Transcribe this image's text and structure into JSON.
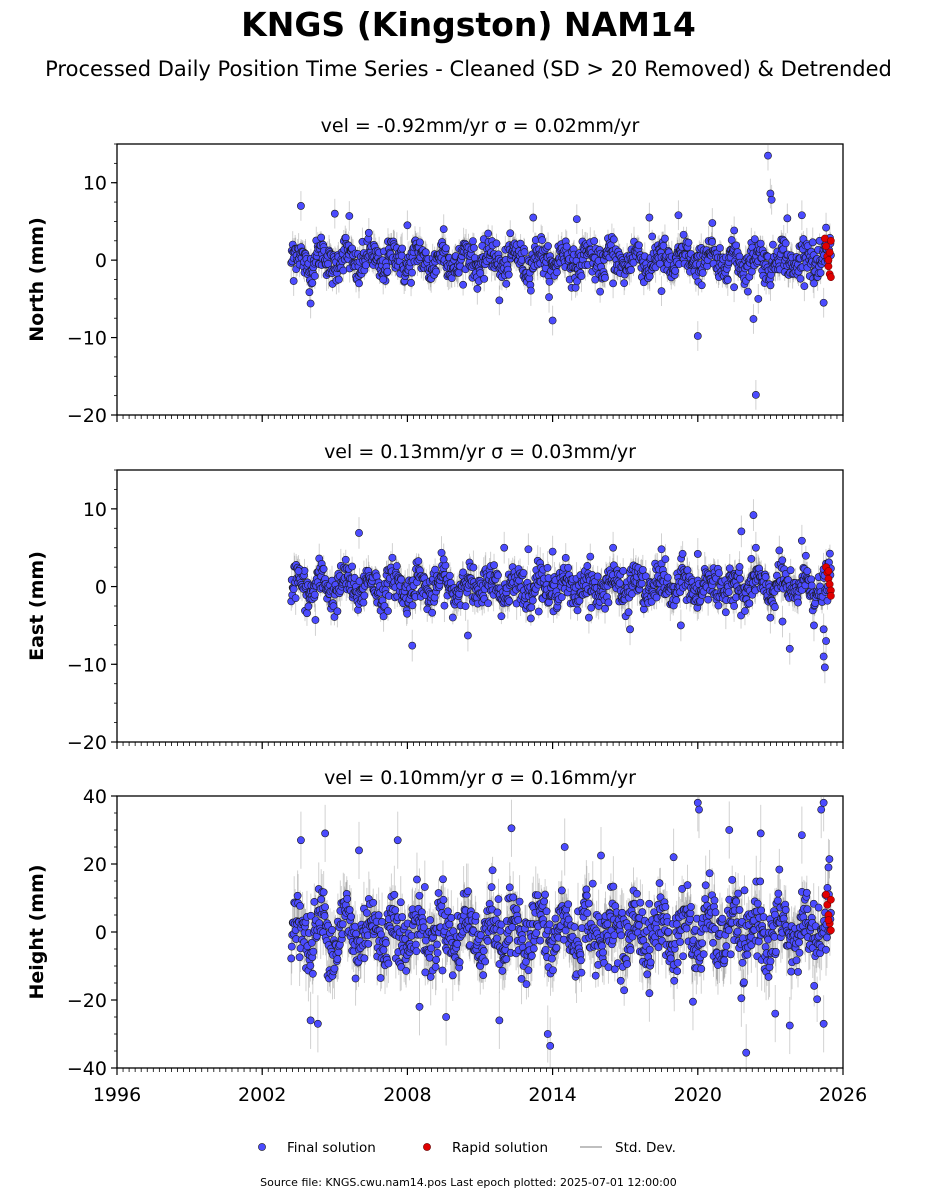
{
  "title": "KNGS (Kingston) NAM14",
  "subtitle": "Processed Daily Position Time Series - Cleaned (SD > 20 Removed) & Detrended",
  "footer": "Source file: KNGS.cwu.nam14.pos  Last epoch plotted: 2025-07-01 12:00:00",
  "legend": {
    "location": "bottom-center",
    "entries": [
      {
        "label": "Final solution",
        "color": "#4b4bff"
      },
      {
        "label": "Rapid solution",
        "color": "#e00000"
      },
      {
        "label": "Std. Dev.",
        "color": "#bfbfbf"
      }
    ]
  },
  "chart_data": [
    {
      "type": "scatter",
      "title": "vel = -0.92mm/yr   σ = 0.02mm/yr",
      "ylabel": "North (mm)",
      "xlabel": "",
      "xlim": [
        1996,
        2026
      ],
      "ylim": [
        -20,
        15
      ],
      "yticks": [
        -20,
        -10,
        0,
        10
      ],
      "xticks": [
        "1996",
        "2002",
        "2008",
        "2014",
        "2020",
        "2026"
      ],
      "data_start": 2003.2,
      "data_end": 2025.5,
      "final_spread_mm": 1.6,
      "series": [
        {
          "name": "Final solution",
          "points": [
            [
              2003.3,
              -2.7
            ],
            [
              2003.6,
              7.0
            ],
            [
              2004.0,
              -5.6
            ],
            [
              2005.0,
              6.0
            ],
            [
              2005.6,
              5.7
            ],
            [
              2006.0,
              -3.0
            ],
            [
              2007.0,
              -2.5
            ],
            [
              2008.0,
              4.5
            ],
            [
              2009.5,
              4.0
            ],
            [
              2011.8,
              -5.2
            ],
            [
              2013.2,
              5.5
            ],
            [
              2014.0,
              -7.8
            ],
            [
              2015.0,
              5.3
            ],
            [
              2016.5,
              -3.0
            ],
            [
              2018.0,
              5.5
            ],
            [
              2018.5,
              -4.0
            ],
            [
              2019.2,
              5.8
            ],
            [
              2020.0,
              -9.8
            ],
            [
              2020.6,
              4.8
            ],
            [
              2021.5,
              -3.5
            ],
            [
              2022.3,
              -7.6
            ],
            [
              2022.4,
              -17.4
            ],
            [
              2022.5,
              -5.0
            ],
            [
              2022.9,
              13.5
            ],
            [
              2023.0,
              8.6
            ],
            [
              2023.05,
              7.8
            ],
            [
              2023.7,
              5.4
            ],
            [
              2024.3,
              5.8
            ],
            [
              2024.8,
              -3.0
            ],
            [
              2025.2,
              -5.5
            ],
            [
              2025.3,
              4.2
            ]
          ]
        },
        {
          "name": "Rapid solution",
          "points": [
            [
              2025.25,
              2.8
            ],
            [
              2025.3,
              1.8
            ],
            [
              2025.35,
              0.5
            ],
            [
              2025.4,
              -0.8
            ],
            [
              2025.45,
              -1.8
            ],
            [
              2025.5,
              -2.2
            ],
            [
              2025.5,
              2.5
            ],
            [
              2025.45,
              1.0
            ],
            [
              2025.4,
              0.0
            ]
          ]
        }
      ]
    },
    {
      "type": "scatter",
      "title": "vel = 0.13mm/yr   σ = 0.03mm/yr",
      "ylabel": "East (mm)",
      "xlabel": "",
      "xlim": [
        1996,
        2026
      ],
      "ylim": [
        -20,
        15
      ],
      "yticks": [
        -20,
        -10,
        0,
        10
      ],
      "xticks": [
        "1996",
        "2002",
        "2008",
        "2014",
        "2020",
        "2026"
      ],
      "data_start": 2003.2,
      "data_end": 2025.5,
      "final_spread_mm": 1.7,
      "series": [
        {
          "name": "Final solution",
          "points": [
            [
              2003.5,
              2.0
            ],
            [
              2004.2,
              -4.3
            ],
            [
              2006.0,
              6.9
            ],
            [
              2008.2,
              -7.6
            ],
            [
              2009.5,
              3.5
            ],
            [
              2010.5,
              -6.3
            ],
            [
              2012.0,
              5.0
            ],
            [
              2013.0,
              4.8
            ],
            [
              2014.0,
              4.5
            ],
            [
              2015.5,
              -4.0
            ],
            [
              2016.5,
              5.0
            ],
            [
              2017.2,
              -5.5
            ],
            [
              2018.5,
              4.8
            ],
            [
              2019.3,
              -5.0
            ],
            [
              2020.0,
              4.2
            ],
            [
              2021.5,
              -2.5
            ],
            [
              2021.8,
              7.1
            ],
            [
              2022.3,
              9.2
            ],
            [
              2022.4,
              5.0
            ],
            [
              2023.0,
              -4.0
            ],
            [
              2023.5,
              -4.5
            ],
            [
              2023.8,
              -8.0
            ],
            [
              2024.3,
              5.9
            ],
            [
              2024.8,
              -5.0
            ],
            [
              2025.2,
              -9.0
            ],
            [
              2025.25,
              -10.4
            ],
            [
              2025.3,
              -7.0
            ],
            [
              2025.2,
              -5.5
            ]
          ]
        },
        {
          "name": "Rapid solution",
          "points": [
            [
              2025.3,
              2.5
            ],
            [
              2025.35,
              1.8
            ],
            [
              2025.4,
              1.0
            ],
            [
              2025.45,
              0.3
            ],
            [
              2025.5,
              -0.5
            ],
            [
              2025.5,
              -1.2
            ],
            [
              2025.4,
              2.0
            ]
          ]
        }
      ]
    },
    {
      "type": "scatter",
      "title": "vel = 0.10mm/yr   σ = 0.16mm/yr",
      "ylabel": "Height (mm)",
      "xlabel": "",
      "xlim": [
        1996,
        2026
      ],
      "ylim": [
        -40,
        40
      ],
      "yticks": [
        -40,
        -20,
        0,
        20,
        40
      ],
      "xticks": [
        "1996",
        "2002",
        "2008",
        "2014",
        "2020",
        "2026"
      ],
      "data_start": 2003.2,
      "data_end": 2025.5,
      "final_spread_mm": 7.0,
      "series": [
        {
          "name": "Final solution",
          "points": [
            [
              2003.6,
              27.0
            ],
            [
              2004.0,
              -26.0
            ],
            [
              2004.3,
              -27.0
            ],
            [
              2004.6,
              29.0
            ],
            [
              2006.0,
              24.0
            ],
            [
              2007.6,
              27.0
            ],
            [
              2008.5,
              -22.0
            ],
            [
              2009.6,
              -25.0
            ],
            [
              2011.8,
              -26.0
            ],
            [
              2012.3,
              30.5
            ],
            [
              2013.8,
              -30.0
            ],
            [
              2013.9,
              -33.5
            ],
            [
              2014.5,
              25.0
            ],
            [
              2016.0,
              22.5
            ],
            [
              2018.0,
              -18.0
            ],
            [
              2019.0,
              22.0
            ],
            [
              2019.8,
              -20.5
            ],
            [
              2020.0,
              38.0
            ],
            [
              2020.05,
              36.0
            ],
            [
              2021.3,
              30.0
            ],
            [
              2021.8,
              -19.5
            ],
            [
              2022.0,
              -35.5
            ],
            [
              2022.6,
              29.0
            ],
            [
              2023.2,
              -24.0
            ],
            [
              2023.8,
              -27.5
            ],
            [
              2024.3,
              28.5
            ],
            [
              2025.1,
              36.0
            ],
            [
              2025.2,
              38.0
            ],
            [
              2025.2,
              -27.0
            ],
            [
              2025.4,
              19.0
            ]
          ]
        },
        {
          "name": "Rapid solution",
          "points": [
            [
              2025.3,
              11.0
            ],
            [
              2025.35,
              8.0
            ],
            [
              2025.4,
              5.0
            ],
            [
              2025.45,
              2.5
            ],
            [
              2025.5,
              0.5
            ],
            [
              2025.5,
              9.5
            ],
            [
              2025.4,
              3.5
            ]
          ]
        }
      ]
    }
  ]
}
